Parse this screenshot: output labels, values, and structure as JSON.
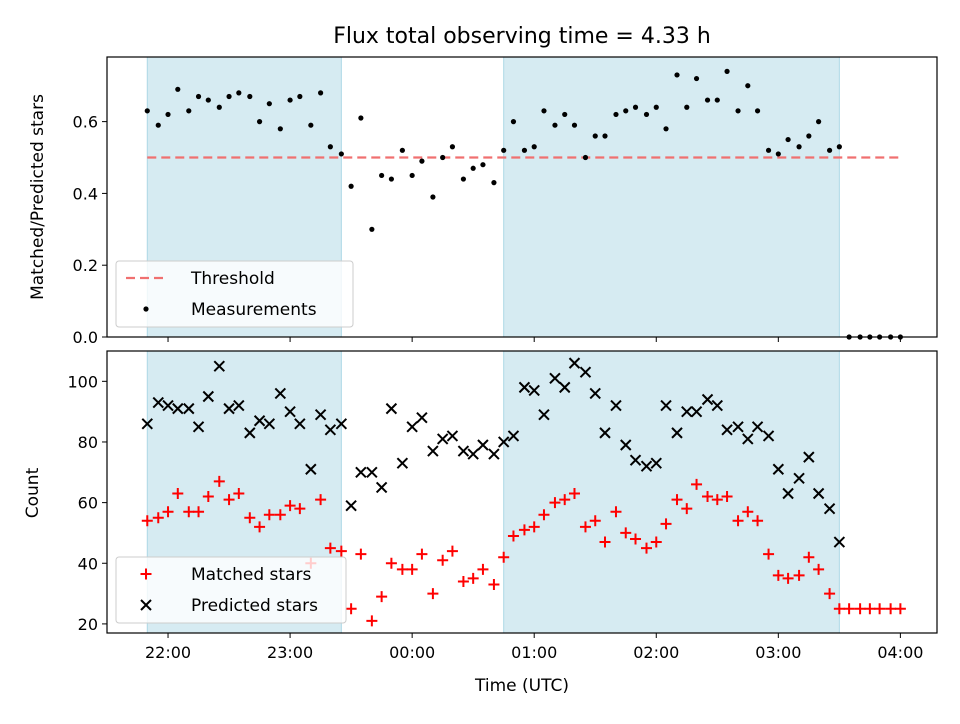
{
  "chart_data": [
    {
      "type": "scatter",
      "title": "Flux total observing time = 4.33 h",
      "xlabel": "",
      "ylabel": "Matched/Predicted stars",
      "ylim": [
        0,
        0.78
      ],
      "yticks": [
        0.0,
        0.2,
        0.4,
        0.6
      ],
      "ytick_labels": [
        "0.0",
        "0.2",
        "0.4",
        "0.6"
      ],
      "xlim_hours": [
        21.5,
        28.3
      ],
      "xticks_hours": [
        22,
        23,
        24,
        25,
        26,
        27,
        28
      ],
      "threshold": {
        "name": "Threshold",
        "value": 0.5,
        "x_hours": [
          21.83,
          28.0
        ],
        "color": "#f07070"
      },
      "shaded_intervals_hours": [
        [
          21.83,
          23.42
        ],
        [
          24.75,
          27.5
        ]
      ],
      "legend": {
        "placement": "lower-left",
        "entries": [
          "Threshold",
          "Measurements"
        ]
      },
      "series": [
        {
          "name": "Measurements",
          "marker": "dot",
          "color": "#000000",
          "points": [
            [
              21.83,
              0.63
            ],
            [
              21.92,
              0.59
            ],
            [
              22.0,
              0.62
            ],
            [
              22.08,
              0.69
            ],
            [
              22.17,
              0.63
            ],
            [
              22.25,
              0.67
            ],
            [
              22.33,
              0.66
            ],
            [
              22.42,
              0.64
            ],
            [
              22.5,
              0.67
            ],
            [
              22.58,
              0.68
            ],
            [
              22.67,
              0.67
            ],
            [
              22.75,
              0.6
            ],
            [
              22.83,
              0.65
            ],
            [
              22.92,
              0.58
            ],
            [
              23.0,
              0.66
            ],
            [
              23.08,
              0.67
            ],
            [
              23.17,
              0.59
            ],
            [
              23.25,
              0.68
            ],
            [
              23.33,
              0.53
            ],
            [
              23.42,
              0.51
            ],
            [
              23.5,
              0.42
            ],
            [
              23.58,
              0.61
            ],
            [
              23.67,
              0.3
            ],
            [
              23.75,
              0.45
            ],
            [
              23.83,
              0.44
            ],
            [
              23.92,
              0.52
            ],
            [
              24.0,
              0.45
            ],
            [
              24.08,
              0.49
            ],
            [
              24.17,
              0.39
            ],
            [
              24.25,
              0.5
            ],
            [
              24.33,
              0.53
            ],
            [
              24.42,
              0.44
            ],
            [
              24.5,
              0.47
            ],
            [
              24.58,
              0.48
            ],
            [
              24.67,
              0.43
            ],
            [
              24.75,
              0.52
            ],
            [
              24.83,
              0.6
            ],
            [
              24.92,
              0.52
            ],
            [
              25.0,
              0.53
            ],
            [
              25.08,
              0.63
            ],
            [
              25.17,
              0.59
            ],
            [
              25.25,
              0.62
            ],
            [
              25.33,
              0.59
            ],
            [
              25.42,
              0.5
            ],
            [
              25.5,
              0.56
            ],
            [
              25.58,
              0.56
            ],
            [
              25.67,
              0.62
            ],
            [
              25.75,
              0.63
            ],
            [
              25.83,
              0.64
            ],
            [
              25.92,
              0.62
            ],
            [
              26.0,
              0.64
            ],
            [
              26.08,
              0.58
            ],
            [
              26.17,
              0.73
            ],
            [
              26.25,
              0.64
            ],
            [
              26.33,
              0.72
            ],
            [
              26.42,
              0.66
            ],
            [
              26.5,
              0.66
            ],
            [
              26.58,
              0.74
            ],
            [
              26.67,
              0.63
            ],
            [
              26.75,
              0.7
            ],
            [
              26.83,
              0.63
            ],
            [
              26.92,
              0.52
            ],
            [
              27.0,
              0.51
            ],
            [
              27.08,
              0.55
            ],
            [
              27.17,
              0.53
            ],
            [
              27.25,
              0.56
            ],
            [
              27.33,
              0.6
            ],
            [
              27.42,
              0.52
            ],
            [
              27.5,
              0.53
            ],
            [
              27.58,
              0.0
            ],
            [
              27.67,
              0.0
            ],
            [
              27.75,
              0.0
            ],
            [
              27.83,
              0.0
            ],
            [
              27.92,
              0.0
            ],
            [
              28.0,
              0.0
            ]
          ]
        }
      ]
    },
    {
      "type": "scatter",
      "title": "",
      "xlabel": "Time (UTC)",
      "ylabel": "Count",
      "ylim": [
        17,
        110
      ],
      "yticks": [
        20,
        40,
        60,
        80,
        100
      ],
      "ytick_labels": [
        "20",
        "40",
        "60",
        "80",
        "100"
      ],
      "xlim_hours": [
        21.5,
        28.3
      ],
      "xticks_hours": [
        22,
        23,
        24,
        25,
        26,
        27,
        28
      ],
      "xtick_labels": [
        "22:00",
        "23:00",
        "00:00",
        "01:00",
        "02:00",
        "03:00",
        "04:00"
      ],
      "shaded_intervals_hours": [
        [
          21.83,
          23.42
        ],
        [
          24.75,
          27.5
        ]
      ],
      "legend": {
        "placement": "lower-left",
        "entries": [
          "Matched stars",
          "Predicted stars"
        ]
      },
      "series": [
        {
          "name": "Matched stars",
          "marker": "plus",
          "color": "#ff0000",
          "points": [
            [
              21.83,
              54
            ],
            [
              21.92,
              55
            ],
            [
              22.0,
              57
            ],
            [
              22.08,
              63
            ],
            [
              22.17,
              57
            ],
            [
              22.25,
              57
            ],
            [
              22.33,
              62
            ],
            [
              22.42,
              67
            ],
            [
              22.5,
              61
            ],
            [
              22.58,
              63
            ],
            [
              22.67,
              55
            ],
            [
              22.75,
              52
            ],
            [
              22.83,
              56
            ],
            [
              22.92,
              56
            ],
            [
              23.0,
              59
            ],
            [
              23.08,
              58
            ],
            [
              23.17,
              40
            ],
            [
              23.25,
              61
            ],
            [
              23.33,
              45
            ],
            [
              23.42,
              44
            ],
            [
              23.5,
              25
            ],
            [
              23.58,
              43
            ],
            [
              23.67,
              21
            ],
            [
              23.75,
              29
            ],
            [
              23.83,
              40
            ],
            [
              23.92,
              38
            ],
            [
              24.0,
              38
            ],
            [
              24.08,
              43
            ],
            [
              24.17,
              30
            ],
            [
              24.25,
              41
            ],
            [
              24.33,
              44
            ],
            [
              24.42,
              34
            ],
            [
              24.5,
              35
            ],
            [
              24.58,
              38
            ],
            [
              24.67,
              33
            ],
            [
              24.75,
              42
            ],
            [
              24.83,
              49
            ],
            [
              24.92,
              51
            ],
            [
              25.0,
              52
            ],
            [
              25.08,
              56
            ],
            [
              25.17,
              60
            ],
            [
              25.25,
              61
            ],
            [
              25.33,
              63
            ],
            [
              25.42,
              52
            ],
            [
              25.5,
              54
            ],
            [
              25.58,
              47
            ],
            [
              25.67,
              57
            ],
            [
              25.75,
              50
            ],
            [
              25.83,
              48
            ],
            [
              25.92,
              45
            ],
            [
              26.0,
              47
            ],
            [
              26.08,
              53
            ],
            [
              26.17,
              61
            ],
            [
              26.25,
              58
            ],
            [
              26.33,
              66
            ],
            [
              26.42,
              62
            ],
            [
              26.5,
              61
            ],
            [
              26.58,
              62
            ],
            [
              26.67,
              54
            ],
            [
              26.75,
              57
            ],
            [
              26.83,
              54
            ],
            [
              26.92,
              43
            ],
            [
              27.0,
              36
            ],
            [
              27.08,
              35
            ],
            [
              27.17,
              36
            ],
            [
              27.25,
              42
            ],
            [
              27.33,
              38
            ],
            [
              27.42,
              30
            ],
            [
              27.5,
              25
            ],
            [
              27.58,
              25
            ],
            [
              27.67,
              25
            ],
            [
              27.75,
              25
            ],
            [
              27.83,
              25
            ],
            [
              27.92,
              25
            ],
            [
              28.0,
              25
            ]
          ]
        },
        {
          "name": "Predicted stars",
          "marker": "x",
          "color": "#000000",
          "points": [
            [
              21.83,
              86
            ],
            [
              21.92,
              93
            ],
            [
              22.0,
              92
            ],
            [
              22.08,
              91
            ],
            [
              22.17,
              91
            ],
            [
              22.25,
              85
            ],
            [
              22.33,
              95
            ],
            [
              22.42,
              105
            ],
            [
              22.5,
              91
            ],
            [
              22.58,
              92
            ],
            [
              22.67,
              83
            ],
            [
              22.75,
              87
            ],
            [
              22.83,
              86
            ],
            [
              22.92,
              96
            ],
            [
              23.0,
              90
            ],
            [
              23.08,
              86
            ],
            [
              23.17,
              71
            ],
            [
              23.25,
              89
            ],
            [
              23.33,
              84
            ],
            [
              23.42,
              86
            ],
            [
              23.5,
              59
            ],
            [
              23.58,
              70
            ],
            [
              23.67,
              70
            ],
            [
              23.75,
              65
            ],
            [
              23.83,
              91
            ],
            [
              23.92,
              73
            ],
            [
              24.0,
              85
            ],
            [
              24.08,
              88
            ],
            [
              24.17,
              77
            ],
            [
              24.25,
              81
            ],
            [
              24.33,
              82
            ],
            [
              24.42,
              77
            ],
            [
              24.5,
              76
            ],
            [
              24.58,
              79
            ],
            [
              24.67,
              76
            ],
            [
              24.75,
              80
            ],
            [
              24.83,
              82
            ],
            [
              24.92,
              98
            ],
            [
              25.0,
              97
            ],
            [
              25.08,
              89
            ],
            [
              25.17,
              101
            ],
            [
              25.25,
              98
            ],
            [
              25.33,
              106
            ],
            [
              25.42,
              103
            ],
            [
              25.5,
              96
            ],
            [
              25.58,
              83
            ],
            [
              25.67,
              92
            ],
            [
              25.75,
              79
            ],
            [
              25.83,
              74
            ],
            [
              25.92,
              72
            ],
            [
              26.0,
              73
            ],
            [
              26.08,
              92
            ],
            [
              26.17,
              83
            ],
            [
              26.25,
              90
            ],
            [
              26.33,
              90
            ],
            [
              26.42,
              94
            ],
            [
              26.5,
              92
            ],
            [
              26.58,
              84
            ],
            [
              26.67,
              85
            ],
            [
              26.75,
              81
            ],
            [
              26.83,
              85
            ],
            [
              26.92,
              82
            ],
            [
              27.0,
              71
            ],
            [
              27.08,
              63
            ],
            [
              27.17,
              68
            ],
            [
              27.25,
              75
            ],
            [
              27.33,
              63
            ],
            [
              27.42,
              58
            ],
            [
              27.5,
              47
            ]
          ]
        }
      ]
    }
  ]
}
